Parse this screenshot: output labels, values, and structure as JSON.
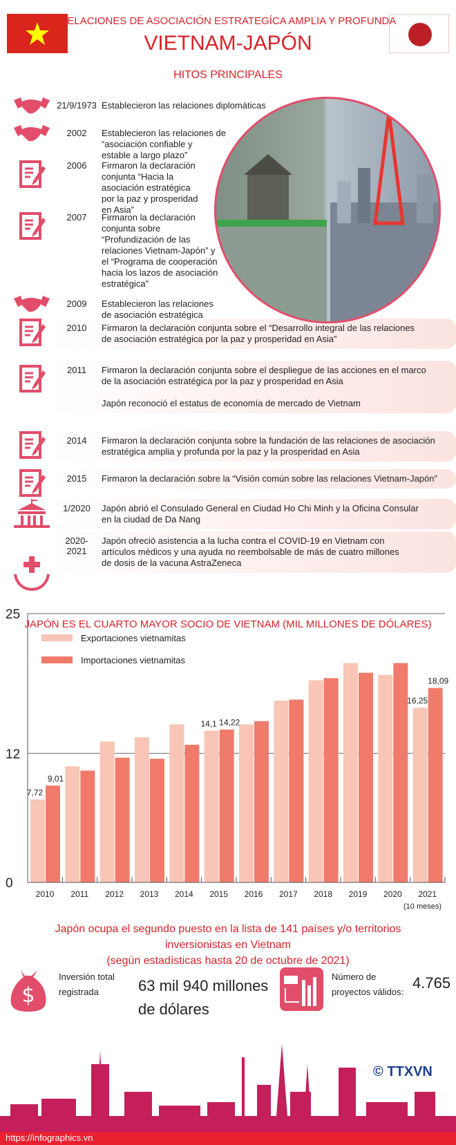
{
  "header": {
    "subtitle": "RELACIONES DE ASOCIACIÓN ESTRATEGÍCA AMPLIA Y PROFUNDA",
    "title": "VIETNAM-JAPÓN",
    "section": "HITOS PRINCIPALES"
  },
  "colors": {
    "accent": "#d8232a",
    "icon": "#e24d6a",
    "exports": "#f9c5b6",
    "imports": "#f07b6a"
  },
  "timeline": [
    {
      "icon": "handshake-icon",
      "year": "21/9/1973",
      "text": "Establecieron las relaciones diplomáticas"
    },
    {
      "icon": "handshake-icon",
      "year": "2002",
      "text": "Establecieron las relaciones de\n “asociación confiable y\nestable a largo plazo”"
    },
    {
      "icon": "document-sign-icon",
      "year": "2006",
      "text": "Firmaron la declaración\nconjunta “Hacia la\nasociación estratégica\npor la paz y prosperidad\n en Asia”"
    },
    {
      "icon": "document-sign-icon",
      "year": "2007",
      "text": "Firmaron la declaración\nconjunta sobre\n“Profundización de las\nrelaciones Vietnam-Japón” y\nel “Programa de cooperación\nhacia los lazos de asociación\nestratégica”"
    },
    {
      "icon": "handshake-icon",
      "year": "2009",
      "text": "Establecieron las relaciones\nde asociación estratégica"
    },
    {
      "icon": "document-sign-icon",
      "year": "2010",
      "text": "Firmaron la declaración conjunta sobre el “Desarrollo integral de las relaciones\nde asociación estratégica por la paz y prosperidad en Asia”"
    },
    {
      "icon": "document-sign-icon",
      "year": "2011",
      "text": "Firmaron la declaración conjunta sobre el despliegue de las acciones en el marco\n de la asociación estratégica por la paz y prosperidad en Asia\n\nJapón reconoció el estatus de economía de mercado de Vietnam"
    },
    {
      "icon": "document-sign-icon",
      "year": "2014",
      "text": "Firmaron la declaración conjunta sobre la fundación de las relaciones de asociación\nestratégica amplia y profunda por la paz y la prosperidad en Asia"
    },
    {
      "icon": "document-sign-icon",
      "year": "2015",
      "text": "Firmaron la declaración sobre la “Visión común sobre las relaciones Vietnam-Japón”"
    },
    {
      "icon": "consulate-building-icon",
      "year": "1/2020",
      "text": "Japón abrió el Consulado General en Ciudad Ho Chi Minh y la Oficina Consular\n en la ciudad de Da Nang"
    },
    {
      "icon": "medical-aid-icon",
      "year": "2020-2021",
      "text": "Japón ofreció asistencia a la lucha contra el COVID-19 en Vietnam con\nartículos médicos y una ayuda no reembolsable de más de cuatro millones\nde dosis de la vacuna AstraZeneca"
    }
  ],
  "chart_data": {
    "type": "bar",
    "title": "JAPÓN ES EL CUARTO MAYOR SOCIO DE VIETNAM (MIL MILLONES DE DÓLARES)",
    "categories": [
      "2010",
      "2011",
      "2012",
      "2013",
      "2014",
      "2015",
      "2016",
      "2017",
      "2018",
      "2019",
      "2020",
      "2021"
    ],
    "category_note": "(10 meses)",
    "ylim": [
      0,
      25
    ],
    "yticks": [
      "0",
      "12",
      "25"
    ],
    "grid": "horizontal at 12 and 25",
    "legend": "top-left",
    "series": [
      {
        "name": "Exportaciones vietnamitas",
        "values": [
          7.72,
          10.8,
          13.1,
          13.5,
          14.7,
          14.1,
          14.7,
          16.9,
          18.8,
          20.4,
          19.3,
          16.25
        ],
        "labels": [
          "7,72",
          "",
          "",
          "",
          "",
          "14,1",
          "",
          "",
          "",
          "",
          "",
          "16,25"
        ]
      },
      {
        "name": "Importaciones vietnamitas",
        "values": [
          9.01,
          10.4,
          11.6,
          11.5,
          12.8,
          14.22,
          15.0,
          17.0,
          19.0,
          19.5,
          20.4,
          18.09
        ],
        "labels": [
          "9,01",
          "",
          "",
          "",
          "",
          "14,22",
          "",
          "",
          "",
          "",
          "",
          "18,09"
        ]
      }
    ]
  },
  "investment": {
    "headline": "Japón ocupa el segundo puesto en la lista de 141 países y/o territorios\ninversionistas en Vietnam\n(según estadísticas hasta 20 de octubre de 2021)",
    "total_label": "Inversión total\nregistrada",
    "total_value": "63 mil 940 millones\nde dólares",
    "projects_label": "Número de\nproyectos válidos:",
    "projects_value": "4.765"
  },
  "footer": {
    "url": "https://infographics.vn",
    "logo": "© TTXVN Vietnam News Agency"
  }
}
